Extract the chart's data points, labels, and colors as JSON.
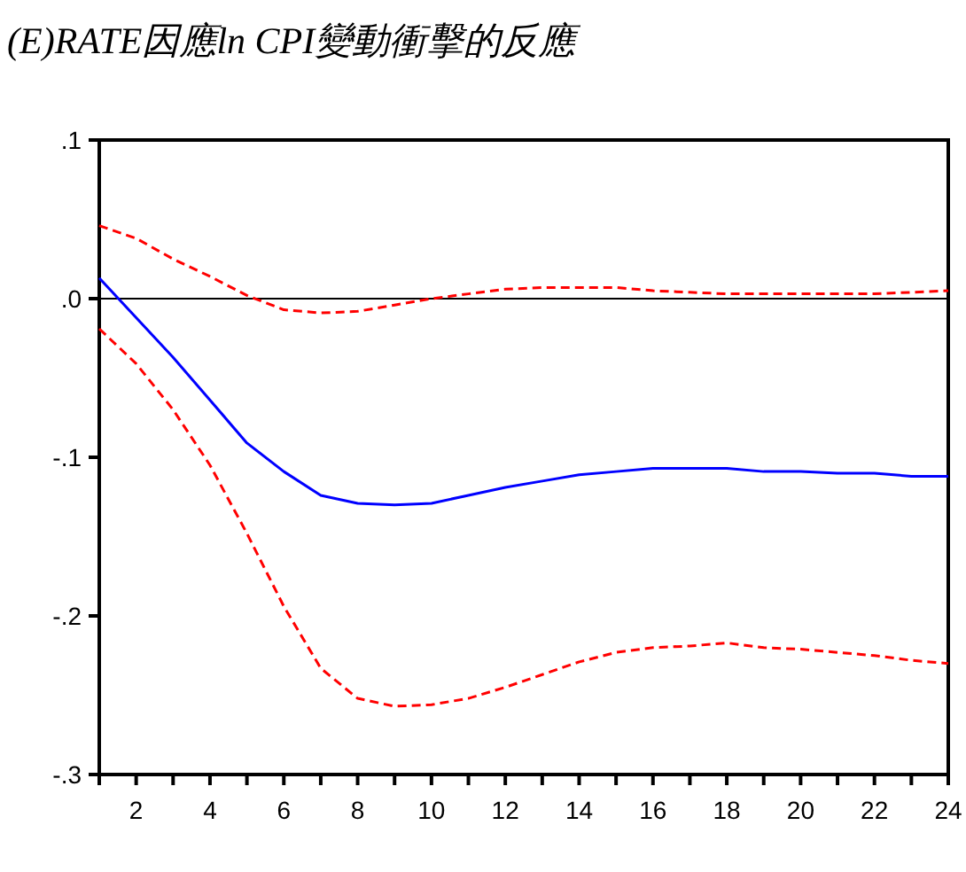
{
  "chart_data": {
    "type": "line",
    "title": "(E)RATE因應ln CPI變動衝擊的反應",
    "x": [
      1,
      2,
      3,
      4,
      5,
      6,
      7,
      8,
      9,
      10,
      11,
      12,
      13,
      14,
      15,
      16,
      17,
      18,
      19,
      20,
      21,
      22,
      23,
      24
    ],
    "series": [
      {
        "color": "#0000ff",
        "line_style": "solid",
        "values": [
          0.013,
          -0.012,
          -0.037,
          -0.064,
          -0.091,
          -0.109,
          -0.124,
          -0.129,
          -0.13,
          -0.129,
          -0.124,
          -0.119,
          -0.115,
          -0.111,
          -0.109,
          -0.107,
          -0.107,
          -0.107,
          -0.109,
          -0.109,
          -0.11,
          -0.11,
          -0.112,
          -0.112
        ]
      },
      {
        "color": "#ff0000",
        "line_style": "dashed",
        "values": [
          0.046,
          0.038,
          0.025,
          0.014,
          0.002,
          -0.007,
          -0.009,
          -0.008,
          -0.004,
          0.0,
          0.003,
          0.006,
          0.007,
          0.007,
          0.007,
          0.005,
          0.004,
          0.003,
          0.003,
          0.003,
          0.003,
          0.003,
          0.004,
          0.005
        ]
      },
      {
        "color": "#ff0000",
        "line_style": "dashed",
        "values": [
          -0.019,
          -0.041,
          -0.07,
          -0.105,
          -0.148,
          -0.194,
          -0.233,
          -0.252,
          -0.257,
          -0.256,
          -0.252,
          -0.245,
          -0.237,
          -0.229,
          -0.223,
          -0.22,
          -0.219,
          -0.217,
          -0.22,
          -0.221,
          -0.223,
          -0.225,
          -0.228,
          -0.23
        ]
      }
    ],
    "xlim": [
      1,
      24
    ],
    "xticks": [
      {
        "value": 1,
        "label": null
      },
      2,
      {
        "value": 3,
        "label": null
      },
      4,
      {
        "value": 5,
        "label": null
      },
      6,
      {
        "value": 7,
        "label": null
      },
      8,
      {
        "value": 9,
        "label": null
      },
      10,
      {
        "value": 11,
        "label": null
      },
      12,
      {
        "value": 13,
        "label": null
      },
      14,
      {
        "value": 15,
        "label": null
      },
      16,
      {
        "value": 17,
        "label": null
      },
      18,
      {
        "value": 19,
        "label": null
      },
      20,
      {
        "value": 21,
        "label": null
      },
      22,
      {
        "value": 23,
        "label": null
      },
      24
    ],
    "ylim": [
      -0.3,
      0.1
    ],
    "yticks": [
      {
        "value": 0.1,
        "label": ".1"
      },
      {
        "value": 0.0,
        "label": ".0"
      },
      {
        "value": -0.1,
        "label": "-.1"
      },
      {
        "value": -0.2,
        "label": "-.2"
      },
      {
        "value": -0.3,
        "label": "-.3"
      }
    ],
    "ref_lines": [
      {
        "axis": "y",
        "value": 0,
        "color": "#000000"
      }
    ],
    "grid": false
  }
}
